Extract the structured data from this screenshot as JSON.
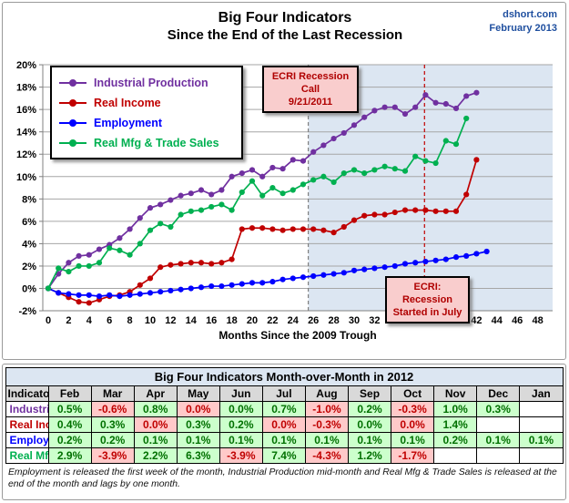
{
  "header": {
    "title_line1": "Big Four Indicators",
    "title_line2": "Since the End of the Last Recession",
    "source": "dshort.com",
    "date": "February 2013"
  },
  "chart_data": {
    "type": "line",
    "title": "Big Four Indicators Since the End of the Last Recession",
    "xlabel": "Months Since the 2009 Trough",
    "ylabel": "",
    "x_unit": "months since June 2009 trough",
    "xlim": [
      0,
      48
    ],
    "x_tick_step": 2,
    "ylim": [
      -2,
      20
    ],
    "y_tick_step": 2,
    "y_tick_format": "percent",
    "grid": true,
    "legend_position": "top-left",
    "shaded_region": {
      "start_month": 25.5,
      "end": "right-edge",
      "color": "#dce6f2",
      "meaning": "period since ECRI recession call"
    },
    "vlines": [
      {
        "month": 25.5,
        "color": "#808080",
        "style": "dashed",
        "label": "ECRI Recession Call 9/21/2011"
      },
      {
        "month": 36.9,
        "color": "#c00000",
        "style": "dashed",
        "label": "ECRI: Recession Started in July"
      }
    ],
    "annotations": [
      {
        "id": "call",
        "line1": "ECRI Recession Call",
        "line2": "9/21/2011"
      },
      {
        "id": "start",
        "line1": "ECRI: Recession",
        "line2": "Started in July"
      }
    ],
    "series": [
      {
        "name": "Industrial Production",
        "color": "#7030a0",
        "start_month": 0,
        "values": [
          0.0,
          1.3,
          2.3,
          2.9,
          3.0,
          3.5,
          3.9,
          4.5,
          5.3,
          6.3,
          7.2,
          7.5,
          7.9,
          8.3,
          8.5,
          8.8,
          8.4,
          8.8,
          10.0,
          10.3,
          10.6,
          10.0,
          10.8,
          10.7,
          11.5,
          11.4,
          12.2,
          12.8,
          13.4,
          13.9,
          14.6,
          15.3,
          15.9,
          16.2,
          16.2,
          15.6,
          16.2,
          17.3,
          16.6,
          16.5,
          16.1,
          17.2,
          17.5
        ]
      },
      {
        "name": "Real Income",
        "color": "#c00000",
        "start_month": 0,
        "values": [
          0.0,
          -0.4,
          -0.8,
          -1.2,
          -1.3,
          -1.0,
          -0.7,
          -0.6,
          -0.3,
          0.3,
          0.9,
          1.9,
          2.1,
          2.2,
          2.3,
          2.3,
          2.2,
          2.3,
          2.6,
          5.3,
          5.4,
          5.4,
          5.3,
          5.2,
          5.3,
          5.3,
          5.3,
          5.2,
          5.0,
          5.5,
          6.1,
          6.5,
          6.6,
          6.6,
          6.8,
          7.0,
          7.0,
          7.0,
          6.9,
          6.9,
          6.9,
          8.4,
          11.5
        ]
      },
      {
        "name": "Employment",
        "color": "#0000ff",
        "start_month": 0,
        "values": [
          0.0,
          -0.4,
          -0.5,
          -0.6,
          -0.6,
          -0.7,
          -0.6,
          -0.7,
          -0.6,
          -0.5,
          -0.4,
          -0.3,
          -0.2,
          -0.1,
          0.0,
          0.1,
          0.2,
          0.2,
          0.3,
          0.4,
          0.5,
          0.5,
          0.6,
          0.8,
          0.9,
          1.0,
          1.1,
          1.2,
          1.3,
          1.4,
          1.6,
          1.7,
          1.8,
          1.9,
          2.0,
          2.2,
          2.3,
          2.4,
          2.5,
          2.6,
          2.8,
          2.9,
          3.1,
          3.3
        ]
      },
      {
        "name": "Real Mfg & Trade Sales",
        "color": "#00b050",
        "start_month": 0,
        "values": [
          0.0,
          1.8,
          1.5,
          2.0,
          2.0,
          2.3,
          3.6,
          3.4,
          3.0,
          4.0,
          5.2,
          5.8,
          5.5,
          6.6,
          6.9,
          7.0,
          7.3,
          7.5,
          7.0,
          8.6,
          9.6,
          8.3,
          9.0,
          8.5,
          8.8,
          9.3,
          9.7,
          10.0,
          9.5,
          10.3,
          10.6,
          10.3,
          10.6,
          10.9,
          10.7,
          10.5,
          11.8,
          11.4,
          11.2,
          13.2,
          12.9,
          15.2
        ]
      }
    ]
  },
  "table": {
    "title": "Big Four Indicators Month-over-Month in 2012",
    "columns": [
      "Indicator",
      "Feb",
      "Mar",
      "Apr",
      "May",
      "Jun",
      "Jul",
      "Aug",
      "Sep",
      "Oct",
      "Nov",
      "Dec",
      "Jan"
    ],
    "rows": [
      {
        "label": "Industrial Production",
        "label_color": "#7030a0",
        "cells": [
          [
            "0.5%",
            "g"
          ],
          [
            "-0.6%",
            "r"
          ],
          [
            "0.8%",
            "g"
          ],
          [
            "0.0%",
            "r"
          ],
          [
            "0.0%",
            "g"
          ],
          [
            "0.7%",
            "g"
          ],
          [
            "-1.0%",
            "r"
          ],
          [
            "0.2%",
            "g"
          ],
          [
            "-0.3%",
            "r"
          ],
          [
            "1.0%",
            "g"
          ],
          [
            "0.3%",
            "g"
          ],
          [
            "",
            "e"
          ]
        ]
      },
      {
        "label": "Real Income",
        "label_color": "#c00000",
        "cells": [
          [
            "0.4%",
            "g"
          ],
          [
            "0.3%",
            "g"
          ],
          [
            "0.0%",
            "r"
          ],
          [
            "0.3%",
            "g"
          ],
          [
            "0.2%",
            "g"
          ],
          [
            "0.0%",
            "r"
          ],
          [
            "-0.3%",
            "r"
          ],
          [
            "0.0%",
            "g"
          ],
          [
            "0.0%",
            "r"
          ],
          [
            "1.4%",
            "g"
          ],
          [
            "",
            "e"
          ],
          [
            "",
            "e"
          ]
        ]
      },
      {
        "label": "Employment",
        "label_color": "#0000ff",
        "cells": [
          [
            "0.2%",
            "g"
          ],
          [
            "0.2%",
            "g"
          ],
          [
            "0.1%",
            "g"
          ],
          [
            "0.1%",
            "g"
          ],
          [
            "0.1%",
            "g"
          ],
          [
            "0.1%",
            "g"
          ],
          [
            "0.1%",
            "g"
          ],
          [
            "0.1%",
            "g"
          ],
          [
            "0.1%",
            "g"
          ],
          [
            "0.2%",
            "g"
          ],
          [
            "0.1%",
            "g"
          ],
          [
            "0.1%",
            "g"
          ]
        ]
      },
      {
        "label": "Real Mfg & Trade Sales",
        "label_color": "#00b050",
        "cells": [
          [
            "2.9%",
            "g"
          ],
          [
            "-3.9%",
            "r"
          ],
          [
            "2.2%",
            "g"
          ],
          [
            "6.3%",
            "g"
          ],
          [
            "-3.9%",
            "r"
          ],
          [
            "7.4%",
            "g"
          ],
          [
            "-4.3%",
            "r"
          ],
          [
            "1.2%",
            "g"
          ],
          [
            "-1.7%",
            "r"
          ],
          [
            "",
            "e"
          ],
          [
            "",
            "e"
          ],
          [
            "",
            "e"
          ]
        ]
      }
    ],
    "legend_colors": {
      "positive_bg": "#ccffcc",
      "negative_bg": "#ffc9c9"
    }
  },
  "footnote": "Employment is released the first week of the month, Industrial Production mid-month and Real Mfg & Trade Sales is released at the end of the month and lags by one month."
}
